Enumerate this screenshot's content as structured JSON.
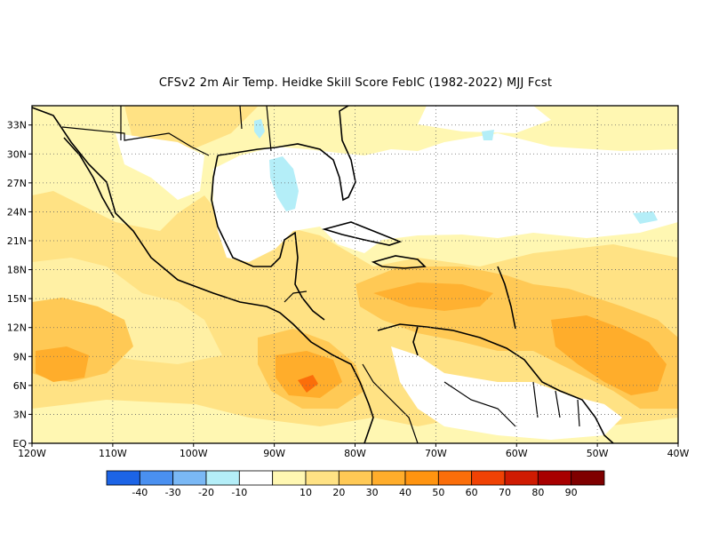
{
  "title": "CFSv2  2m Air Temp. Heidke Skill Score FebIC (1982-2022) MJJ Fcst",
  "map": {
    "lon_range": [
      -120,
      -40
    ],
    "lat_range": [
      0,
      35
    ],
    "x_ticks": [
      "120W",
      "110W",
      "100W",
      "90W",
      "80W",
      "70W",
      "60W",
      "50W",
      "40W"
    ],
    "y_ticks": [
      "EQ",
      "3N",
      "6N",
      "9N",
      "12N",
      "15N",
      "18N",
      "21N",
      "24N",
      "27N",
      "30N",
      "33N"
    ],
    "grid": true
  },
  "colorbar": {
    "colors": [
      "#1c64e6",
      "#4a90f0",
      "#7ab8f5",
      "#b4eef8",
      "#ffffff",
      "#fff7b2",
      "#ffe284",
      "#ffc955",
      "#ffad2b",
      "#ff9410",
      "#fb6e0a",
      "#f04204",
      "#cf1b02",
      "#a80000",
      "#7f0000"
    ],
    "labels": [
      "-40",
      "-30",
      "-20",
      "-10",
      "10",
      "20",
      "30",
      "40",
      "50",
      "60",
      "70",
      "80",
      "90"
    ]
  }
}
